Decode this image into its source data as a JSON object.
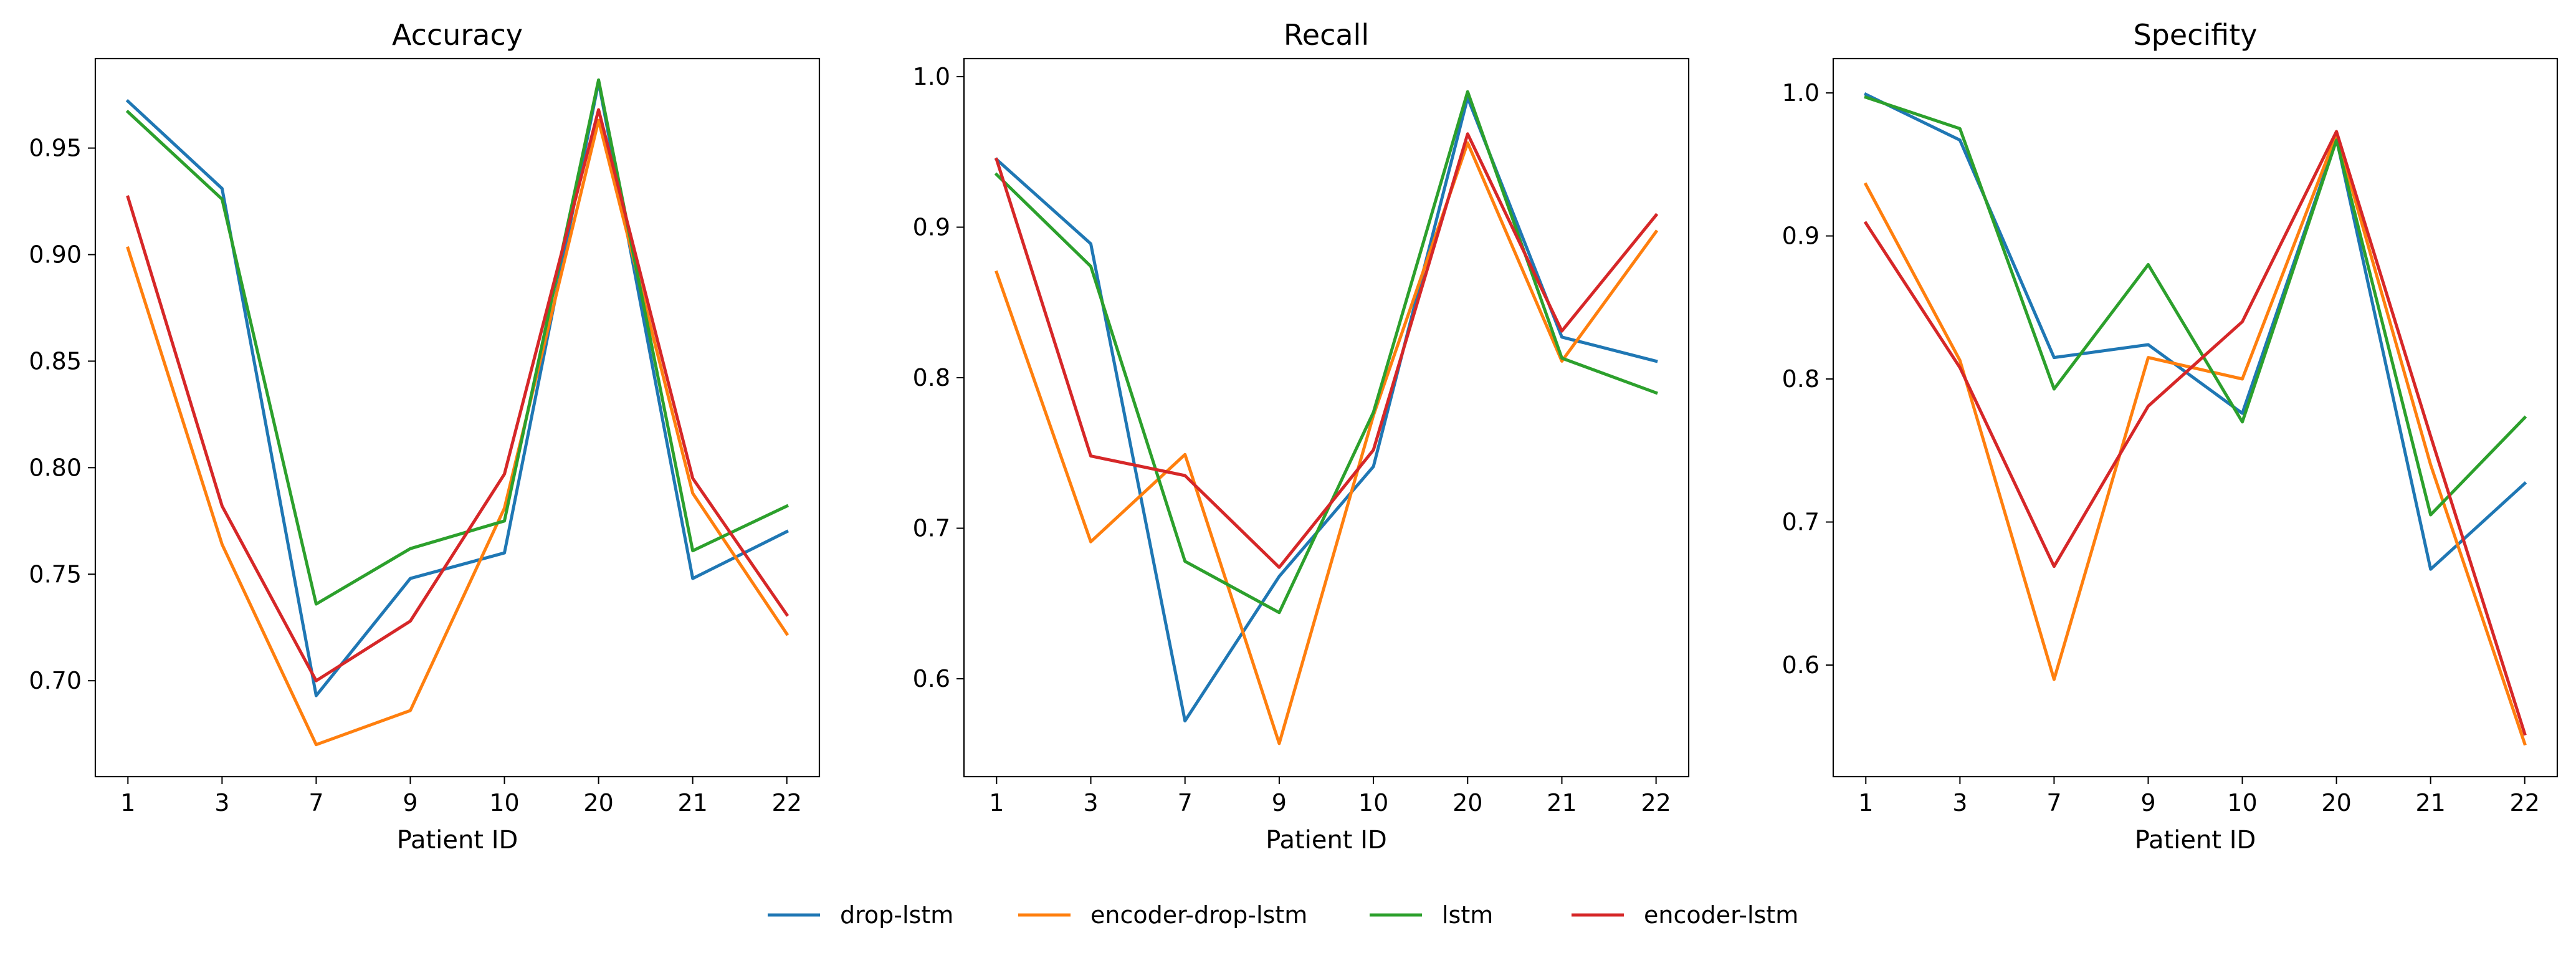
{
  "legend": {
    "placement": "bottom-center",
    "items": [
      {
        "name": "drop-lstm",
        "color": "#1f77b4"
      },
      {
        "name": "encoder-drop-lstm",
        "color": "#ff7f0e"
      },
      {
        "name": "lstm",
        "color": "#2ca02c"
      },
      {
        "name": "encoder-lstm",
        "color": "#d62728"
      }
    ]
  },
  "chart_data": [
    {
      "type": "line",
      "title": "Accuracy",
      "xlabel": "Patient ID",
      "ylabel": "",
      "categories": [
        "1",
        "3",
        "7",
        "9",
        "10",
        "20",
        "21",
        "22"
      ],
      "ylim": [
        0.655,
        0.992
      ],
      "yticks": [
        "0.70",
        "0.75",
        "0.80",
        "0.85",
        "0.90",
        "0.95"
      ],
      "grid": false,
      "series": [
        {
          "name": "drop-lstm",
          "color": "#1f77b4",
          "values": [
            0.972,
            0.931,
            0.693,
            0.748,
            0.76,
            0.981,
            0.748,
            0.77
          ]
        },
        {
          "name": "encoder-drop-lstm",
          "color": "#ff7f0e",
          "values": [
            0.903,
            0.764,
            0.67,
            0.686,
            0.781,
            0.963,
            0.788,
            0.722
          ]
        },
        {
          "name": "lstm",
          "color": "#2ca02c",
          "values": [
            0.967,
            0.926,
            0.736,
            0.762,
            0.775,
            0.982,
            0.761,
            0.782
          ]
        },
        {
          "name": "encoder-lstm",
          "color": "#d62728",
          "values": [
            0.927,
            0.782,
            0.7,
            0.728,
            0.797,
            0.968,
            0.795,
            0.731
          ]
        }
      ]
    },
    {
      "type": "line",
      "title": "Recall",
      "xlabel": "Patient ID",
      "ylabel": "",
      "categories": [
        "1",
        "3",
        "7",
        "9",
        "10",
        "20",
        "21",
        "22"
      ],
      "ylim": [
        0.535,
        1.012
      ],
      "yticks": [
        "0.6",
        "0.7",
        "0.8",
        "0.9",
        "1.0"
      ],
      "grid": false,
      "series": [
        {
          "name": "drop-lstm",
          "color": "#1f77b4",
          "values": [
            0.945,
            0.889,
            0.572,
            0.668,
            0.741,
            0.986,
            0.827,
            0.811
          ]
        },
        {
          "name": "encoder-drop-lstm",
          "color": "#ff7f0e",
          "values": [
            0.87,
            0.691,
            0.749,
            0.557,
            0.775,
            0.956,
            0.811,
            0.897
          ]
        },
        {
          "name": "lstm",
          "color": "#2ca02c",
          "values": [
            0.935,
            0.874,
            0.678,
            0.644,
            0.777,
            0.99,
            0.813,
            0.79
          ]
        },
        {
          "name": "encoder-lstm",
          "color": "#d62728",
          "values": [
            0.945,
            0.748,
            0.735,
            0.674,
            0.752,
            0.962,
            0.831,
            0.908
          ]
        }
      ]
    },
    {
      "type": "line",
      "title": "Specifity",
      "xlabel": "Patient ID",
      "ylabel": "",
      "categories": [
        "1",
        "3",
        "7",
        "9",
        "10",
        "20",
        "21",
        "22"
      ],
      "ylim": [
        0.522,
        1.024
      ],
      "yticks": [
        "0.6",
        "0.7",
        "0.8",
        "0.9",
        "1.0"
      ],
      "grid": false,
      "series": [
        {
          "name": "drop-lstm",
          "color": "#1f77b4",
          "values": [
            0.999,
            0.967,
            0.815,
            0.824,
            0.776,
            0.968,
            0.667,
            0.727
          ]
        },
        {
          "name": "encoder-drop-lstm",
          "color": "#ff7f0e",
          "values": [
            0.936,
            0.813,
            0.59,
            0.815,
            0.8,
            0.971,
            0.74,
            0.545
          ]
        },
        {
          "name": "lstm",
          "color": "#2ca02c",
          "values": [
            0.997,
            0.975,
            0.793,
            0.88,
            0.77,
            0.967,
            0.705,
            0.773
          ]
        },
        {
          "name": "encoder-lstm",
          "color": "#d62728",
          "values": [
            0.909,
            0.808,
            0.669,
            0.781,
            0.84,
            0.973,
            0.76,
            0.552
          ]
        }
      ]
    }
  ]
}
